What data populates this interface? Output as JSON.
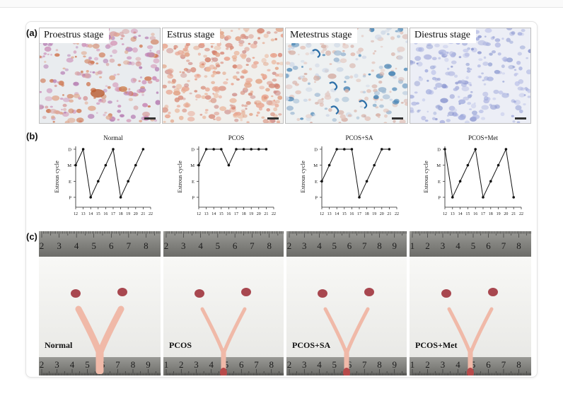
{
  "panels": {
    "a_label": "(a)",
    "b_label": "(b)",
    "c_label": "(c)"
  },
  "micrographs": [
    {
      "label": "Proestrus stage",
      "tint": "#c9a7c6"
    },
    {
      "label": "Estrus stage",
      "tint": "#e7bfb4"
    },
    {
      "label": "Metestrus stage",
      "tint": "#d9d3d2"
    },
    {
      "label": "Diestrus stage",
      "tint": "#c9cfe6"
    }
  ],
  "chart_data": [
    {
      "type": "line",
      "title": "Normal",
      "ylabel": "Estrous cycle",
      "x": [
        12,
        13,
        14,
        15,
        16,
        17,
        18,
        19,
        20,
        21
      ],
      "y_categories": [
        "P",
        "E",
        "M",
        "D"
      ],
      "values": [
        "M",
        "D",
        "P",
        "E",
        "M",
        "D",
        "P",
        "E",
        "M",
        "D"
      ],
      "xlim": [
        12,
        22
      ]
    },
    {
      "type": "line",
      "title": "PCOS",
      "ylabel": "Estrous cycle",
      "x": [
        12,
        13,
        14,
        15,
        16,
        17,
        18,
        19,
        20,
        21
      ],
      "y_categories": [
        "P",
        "E",
        "M",
        "D"
      ],
      "values": [
        "M",
        "D",
        "D",
        "D",
        "M",
        "D",
        "D",
        "D",
        "D",
        "D"
      ],
      "xlim": [
        12,
        22
      ]
    },
    {
      "type": "line",
      "title": "PCOS+SA",
      "ylabel": "Estrous cycle",
      "x": [
        12,
        13,
        14,
        15,
        16,
        17,
        18,
        19,
        20,
        21
      ],
      "y_categories": [
        "P",
        "E",
        "M",
        "D"
      ],
      "values": [
        "E",
        "M",
        "D",
        "D",
        "D",
        "P",
        "E",
        "M",
        "D",
        "D"
      ],
      "xlim": [
        12,
        22
      ]
    },
    {
      "type": "line",
      "title": "PCOS+Met",
      "ylabel": "Estrous cycle",
      "x": [
        12,
        13,
        14,
        15,
        16,
        17,
        18,
        19,
        20,
        21
      ],
      "y_categories": [
        "P",
        "E",
        "M",
        "D"
      ],
      "values": [
        "D",
        "P",
        "E",
        "M",
        "D",
        "P",
        "E",
        "M",
        "D",
        "P"
      ],
      "xlim": [
        12,
        22
      ]
    }
  ],
  "photos": [
    {
      "group": "Normal",
      "ruler_top": [
        "2",
        "3",
        "4",
        "5",
        "6",
        "7",
        "8"
      ],
      "ruler_bottom": [
        "2",
        "3",
        "4",
        "5",
        "6",
        "7",
        "8",
        "9"
      ]
    },
    {
      "group": "PCOS",
      "ruler_top": [
        "2",
        "3",
        "4",
        "5",
        "6",
        "7",
        "8"
      ],
      "ruler_bottom": [
        "1",
        "2",
        "3",
        "4",
        "5",
        "6",
        "7",
        "8"
      ]
    },
    {
      "group": "PCOS+SA",
      "ruler_top": [
        "2",
        "3",
        "4",
        "5",
        "6",
        "7",
        "8",
        "9"
      ],
      "ruler_bottom": [
        "2",
        "3",
        "4",
        "5",
        "6",
        "7",
        "8",
        "9"
      ]
    },
    {
      "group": "PCOS+Met",
      "ruler_top": [
        "1",
        "2",
        "3",
        "4",
        "5",
        "6",
        "7",
        "8"
      ],
      "ruler_bottom": [
        "1",
        "2",
        "3",
        "4",
        "5",
        "6",
        "7",
        "8"
      ]
    }
  ],
  "colors": {
    "line": "#111111",
    "tissue": "#f0b9a8",
    "tissue_dark": "#b84a4a",
    "ovary": "#a8474f"
  }
}
